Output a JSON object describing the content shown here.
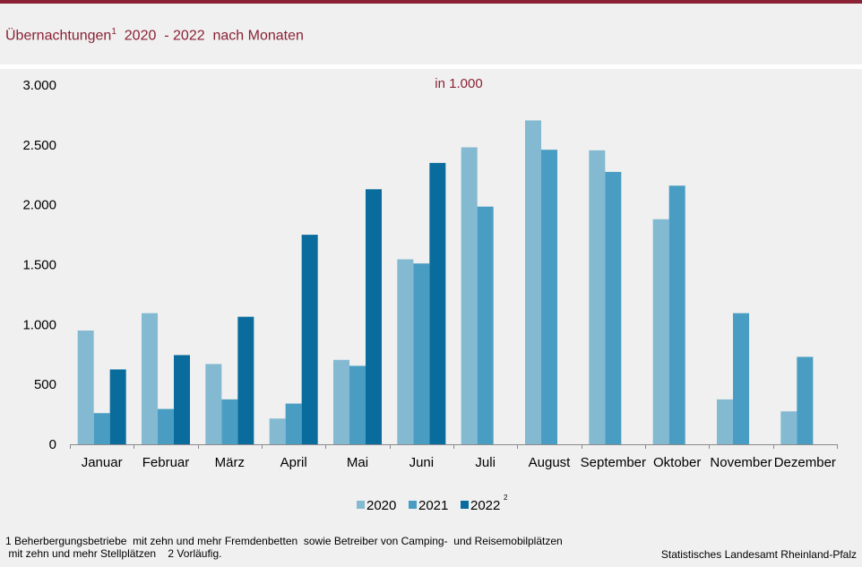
{
  "title": {
    "text": "Übernachtungen",
    "sup": "1",
    "rest": "  2020  - 2022  nach Monaten"
  },
  "footnotes": {
    "line1": "1 Beherbergungsbetriebe  mit zehn und mehr Fremdenbetten  sowie Betreiber von Camping-  und Reisemobilplätzen",
    "line2": " mit zehn und mehr Stellplätzen    2 Vorläufig."
  },
  "source": "Statistisches Landesamt Rheinland-Pfalz",
  "colors": {
    "s2020": "#84b9d2",
    "s2021": "#4a9dc2",
    "s2022": "#0a6c9c",
    "title": "#8b2135"
  },
  "chart_data": {
    "type": "bar",
    "unit_label": "in 1.000",
    "categories": [
      "Januar",
      "Februar",
      "März",
      "April",
      "Mai",
      "Juni",
      "Juli",
      "August",
      "September",
      "Oktober",
      "November",
      "Dezember"
    ],
    "series": [
      {
        "name": "2020",
        "values": [
          950,
          1095,
          670,
          215,
          705,
          1545,
          2480,
          2705,
          2455,
          1880,
          375,
          275
        ]
      },
      {
        "name": "2021",
        "values": [
          260,
          295,
          375,
          340,
          655,
          1510,
          1985,
          2460,
          2275,
          2160,
          1095,
          730
        ]
      },
      {
        "name": "2022",
        "sup": "2",
        "values": [
          625,
          745,
          1065,
          1750,
          2130,
          2350,
          null,
          null,
          null,
          null,
          null,
          null
        ]
      }
    ],
    "ylim": [
      0,
      3000
    ],
    "yticks": [
      0,
      500,
      1000,
      1500,
      2000,
      2500,
      3000
    ],
    "ytick_labels": [
      "0",
      "500",
      "1.000",
      "1.500",
      "2.000",
      "2.500",
      "3.000"
    ],
    "grid": false,
    "legend": "bottom-center"
  }
}
